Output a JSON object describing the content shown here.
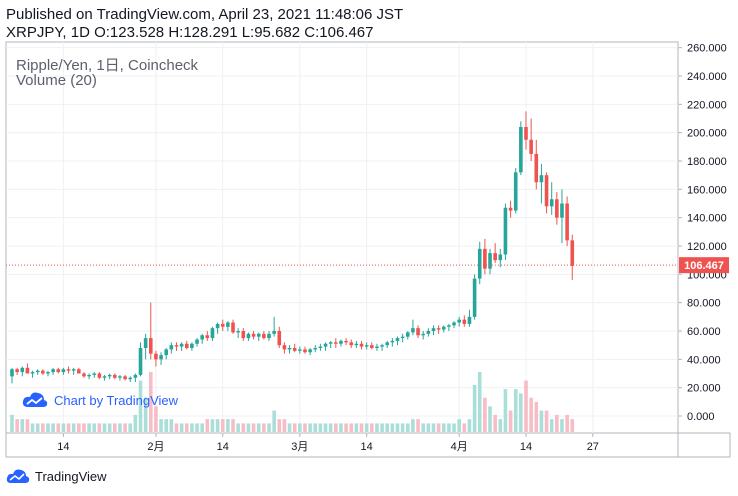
{
  "header": {
    "published": "Published on TradingView.com, April 23, 2021 11:48:06 JST",
    "summary": "XRPJPY, 1D O:123.528 H:128.291 L:95.682 C:106.467"
  },
  "legend": {
    "title": "Ripple/Yen, 1日, Coincheck",
    "volume": "Volume (20)"
  },
  "watermark": {
    "text": "Chart by TradingView",
    "icon": "tradingview-cloud-icon"
  },
  "footer": {
    "text": "TradingView",
    "icon": "tradingview-logo-icon"
  },
  "colors": {
    "up": "#26a69a",
    "down": "#ef5350",
    "up_wick": "#26a69a",
    "down_wick": "#ef5350",
    "vol_up": "#a9dfd8",
    "vol_down": "#f7bcc5",
    "price_line": "#ef5350",
    "grid": "#eef0f3",
    "axis_text": "#131722",
    "accent": "#2962ff"
  },
  "chart_data": {
    "type": "candlestick",
    "symbol": "XRPJPY",
    "interval": "1D",
    "exchange": "Coincheck",
    "last_price_label": "106.467",
    "last_price": 106.467,
    "ylim": [
      -12,
      264
    ],
    "y_ticks": [
      "0.000",
      "20.000",
      "40.000",
      "60.000",
      "80.000",
      "100.000",
      "120.000",
      "140.000",
      "160.000",
      "180.000",
      "200.000",
      "220.000",
      "240.000",
      "260.000"
    ],
    "y_tick_values": [
      0,
      20,
      40,
      60,
      80,
      100,
      120,
      140,
      160,
      180,
      200,
      220,
      240,
      260
    ],
    "x_ticks": [
      {
        "label": "14",
        "index": 10
      },
      {
        "label": "2月",
        "index": 28
      },
      {
        "label": "14",
        "index": 41
      },
      {
        "label": "3月",
        "index": 56
      },
      {
        "label": "14",
        "index": 69
      },
      {
        "label": "4月",
        "index": 87
      },
      {
        "label": "14",
        "index": 100
      },
      {
        "label": "27",
        "index": 113
      }
    ],
    "candles": [
      [
        28,
        34,
        23,
        33,
        4
      ],
      [
        33,
        34,
        29,
        31,
        3
      ],
      [
        31,
        35,
        28,
        34,
        3
      ],
      [
        34,
        37,
        30,
        30,
        3
      ],
      [
        30,
        32,
        27,
        31,
        2
      ],
      [
        31,
        33,
        29,
        32,
        2
      ],
      [
        32,
        33,
        29,
        30,
        2
      ],
      [
        30,
        32,
        28,
        31,
        2
      ],
      [
        31,
        34,
        29,
        33,
        2
      ],
      [
        33,
        34,
        30,
        31,
        2
      ],
      [
        31,
        34,
        29,
        33,
        2
      ],
      [
        33,
        35,
        30,
        32,
        2
      ],
      [
        32,
        34,
        29,
        33,
        2
      ],
      [
        33,
        34,
        30,
        30,
        2
      ],
      [
        30,
        31,
        27,
        28,
        2
      ],
      [
        28,
        30,
        26,
        29,
        2
      ],
      [
        29,
        31,
        27,
        30,
        2
      ],
      [
        30,
        31,
        26,
        27,
        2
      ],
      [
        27,
        29,
        25,
        28,
        2
      ],
      [
        28,
        30,
        26,
        29,
        2
      ],
      [
        29,
        30,
        26,
        27,
        2
      ],
      [
        27,
        29,
        25,
        28,
        2
      ],
      [
        28,
        29,
        25,
        26,
        2
      ],
      [
        26,
        28,
        24,
        27,
        2
      ],
      [
        27,
        30,
        24,
        29,
        4
      ],
      [
        29,
        52,
        28,
        48,
        12
      ],
      [
        48,
        58,
        40,
        55,
        8
      ],
      [
        55,
        80,
        40,
        44,
        14
      ],
      [
        44,
        46,
        35,
        40,
        6
      ],
      [
        40,
        45,
        36,
        43,
        3
      ],
      [
        43,
        48,
        40,
        47,
        3
      ],
      [
        47,
        52,
        44,
        50,
        3
      ],
      [
        50,
        52,
        46,
        49,
        2
      ],
      [
        49,
        52,
        46,
        51,
        2
      ],
      [
        51,
        53,
        47,
        48,
        2
      ],
      [
        48,
        52,
        46,
        51,
        2
      ],
      [
        51,
        55,
        49,
        54,
        2
      ],
      [
        54,
        58,
        51,
        57,
        2
      ],
      [
        57,
        60,
        53,
        55,
        3
      ],
      [
        55,
        63,
        53,
        62,
        3
      ],
      [
        62,
        66,
        58,
        65,
        3
      ],
      [
        65,
        68,
        60,
        63,
        3
      ],
      [
        63,
        67,
        60,
        66,
        3
      ],
      [
        66,
        68,
        58,
        59,
        3
      ],
      [
        59,
        62,
        55,
        60,
        2
      ],
      [
        60,
        62,
        53,
        55,
        2
      ],
      [
        55,
        59,
        53,
        58,
        2
      ],
      [
        58,
        60,
        54,
        56,
        2
      ],
      [
        56,
        59,
        53,
        58,
        2
      ],
      [
        58,
        60,
        54,
        55,
        2
      ],
      [
        55,
        60,
        53,
        58,
        2
      ],
      [
        58,
        70,
        56,
        60,
        5
      ],
      [
        60,
        63,
        48,
        50,
        3
      ],
      [
        50,
        52,
        44,
        47,
        3
      ],
      [
        47,
        50,
        44,
        48,
        2
      ],
      [
        48,
        51,
        45,
        46,
        2
      ],
      [
        46,
        49,
        44,
        47,
        2
      ],
      [
        47,
        49,
        44,
        45,
        2
      ],
      [
        45,
        48,
        43,
        47,
        2
      ],
      [
        47,
        50,
        45,
        48,
        2
      ],
      [
        48,
        51,
        46,
        49,
        2
      ],
      [
        49,
        52,
        46,
        51,
        2
      ],
      [
        51,
        53,
        48,
        52,
        2
      ],
      [
        52,
        55,
        48,
        51,
        2
      ],
      [
        51,
        54,
        49,
        53,
        2
      ],
      [
        53,
        55,
        50,
        52,
        2
      ],
      [
        52,
        54,
        48,
        50,
        2
      ],
      [
        50,
        53,
        48,
        51,
        2
      ],
      [
        51,
        53,
        47,
        49,
        2
      ],
      [
        49,
        52,
        47,
        50,
        2
      ],
      [
        50,
        52,
        47,
        48,
        2
      ],
      [
        48,
        51,
        46,
        49,
        2
      ],
      [
        49,
        51,
        46,
        50,
        2
      ],
      [
        50,
        53,
        48,
        52,
        2
      ],
      [
        52,
        55,
        49,
        53,
        2
      ],
      [
        53,
        56,
        50,
        55,
        2
      ],
      [
        55,
        58,
        52,
        56,
        2
      ],
      [
        56,
        60,
        54,
        59,
        2
      ],
      [
        59,
        68,
        57,
        62,
        3
      ],
      [
        62,
        64,
        55,
        57,
        3
      ],
      [
        57,
        60,
        54,
        58,
        2
      ],
      [
        58,
        62,
        56,
        60,
        2
      ],
      [
        60,
        64,
        57,
        62,
        2
      ],
      [
        62,
        64,
        58,
        61,
        2
      ],
      [
        61,
        64,
        59,
        63,
        2
      ],
      [
        63,
        65,
        60,
        64,
        2
      ],
      [
        64,
        67,
        62,
        66,
        2
      ],
      [
        66,
        70,
        63,
        68,
        3
      ],
      [
        68,
        71,
        63,
        65,
        2
      ],
      [
        65,
        75,
        63,
        70,
        3
      ],
      [
        70,
        100,
        68,
        97,
        11
      ],
      [
        97,
        123,
        93,
        118,
        14
      ],
      [
        118,
        125,
        100,
        104,
        8
      ],
      [
        104,
        118,
        100,
        115,
        6
      ],
      [
        115,
        122,
        108,
        110,
        4
      ],
      [
        110,
        118,
        105,
        114,
        3
      ],
      [
        114,
        150,
        110,
        147,
        10
      ],
      [
        147,
        152,
        140,
        145,
        5
      ],
      [
        145,
        175,
        143,
        172,
        10
      ],
      [
        172,
        208,
        170,
        204,
        9
      ],
      [
        204,
        215,
        188,
        195,
        12
      ],
      [
        195,
        210,
        180,
        185,
        8
      ],
      [
        185,
        195,
        160,
        165,
        7
      ],
      [
        165,
        178,
        150,
        170,
        5
      ],
      [
        170,
        172,
        143,
        148,
        5
      ],
      [
        148,
        165,
        142,
        153,
        3
      ],
      [
        153,
        158,
        135,
        140,
        4
      ],
      [
        140,
        160,
        122,
        150,
        3
      ],
      [
        150,
        155,
        120,
        124,
        4
      ],
      [
        124,
        128,
        96,
        106,
        3
      ]
    ]
  }
}
